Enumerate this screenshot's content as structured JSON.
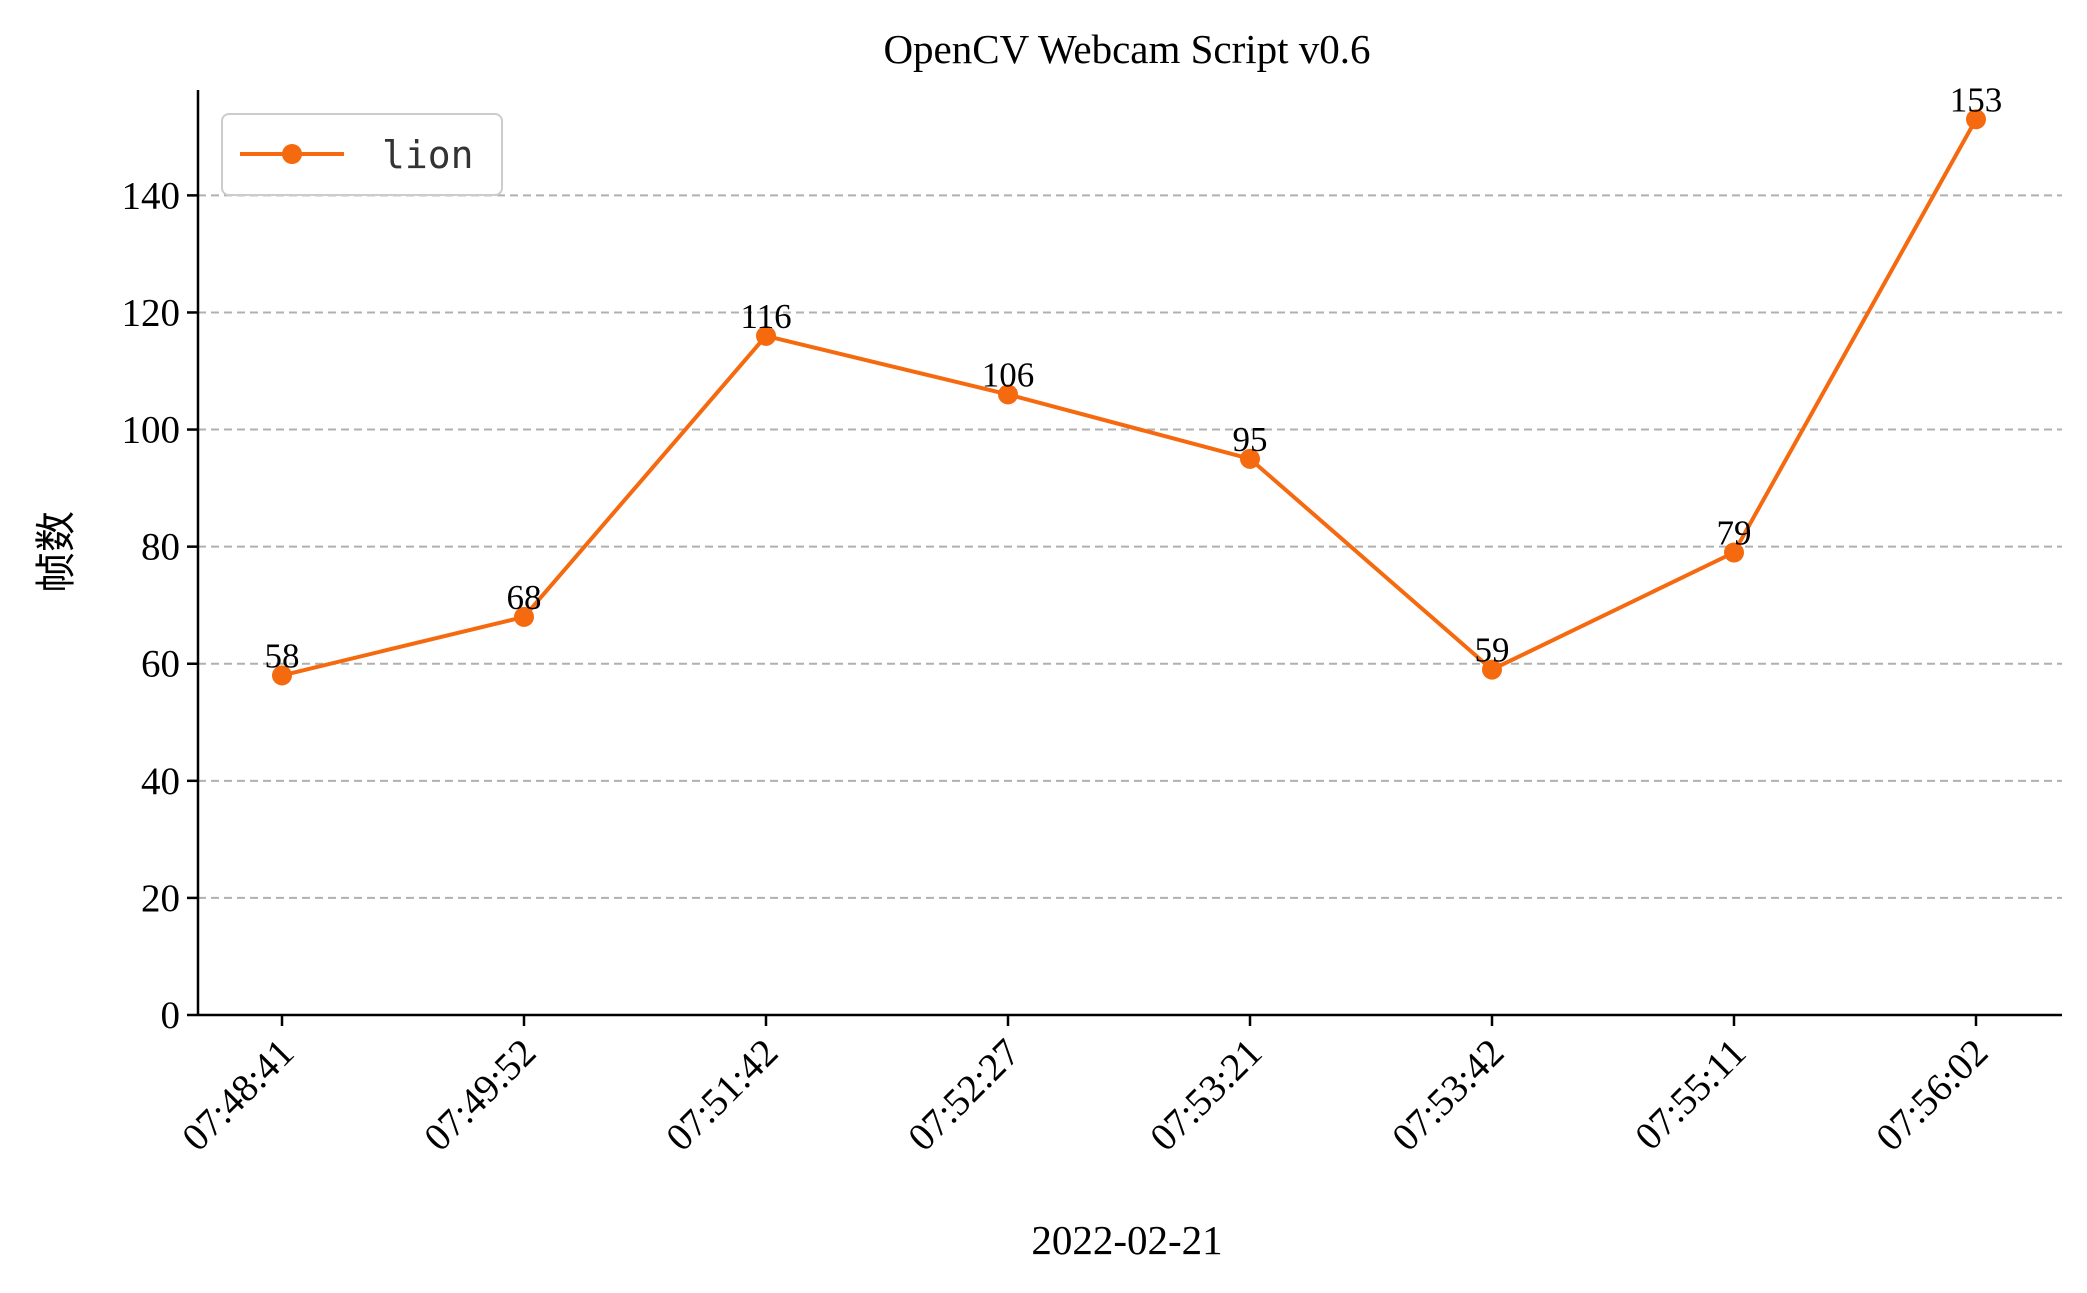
{
  "chart_data": {
    "type": "line",
    "title": "OpenCV Webcam Script v0.6",
    "xlabel": "2022-02-21",
    "ylabel": "帧数",
    "categories": [
      "07:48:41",
      "07:49:52",
      "07:51:42",
      "07:52:27",
      "07:53:21",
      "07:53:42",
      "07:55:11",
      "07:56:02"
    ],
    "series": [
      {
        "name": "lion",
        "values": [
          58,
          68,
          116,
          106,
          95,
          59,
          79,
          153
        ],
        "color": "#f5690f"
      }
    ],
    "ylim": [
      0,
      158
    ],
    "yticks": [
      0,
      20,
      40,
      60,
      80,
      100,
      120,
      140
    ],
    "grid": "y-dashed",
    "legend_position": "top-left",
    "data_labels": true
  }
}
